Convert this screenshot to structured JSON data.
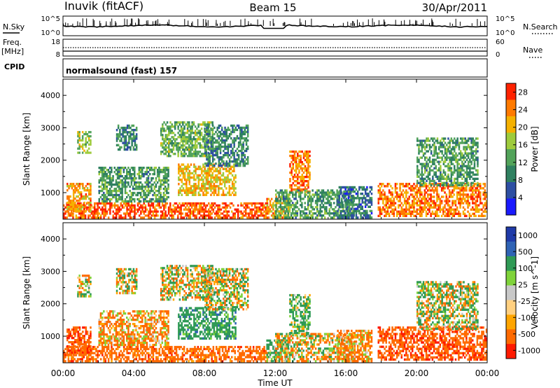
{
  "header": {
    "station": "Inuvik (fitACF)",
    "beam": "Beam 15",
    "date": "30/Apr/2011"
  },
  "noise_panel": {
    "left_label": "N.Sky",
    "left_ticks": [
      "10^5",
      "10^0"
    ],
    "right_label": "N.Search",
    "right_ticks": [
      "10^5",
      "10^0"
    ]
  },
  "freq_panel": {
    "left_label_line1": "Freq.",
    "left_label_line2": "[MHz]",
    "left_ticks": [
      "18",
      "8"
    ],
    "right_label": "Nave",
    "right_ticks": [
      "60",
      "0"
    ]
  },
  "cpid_panel": {
    "label": "CPID",
    "mode_text": "normalsound (fast) 157"
  },
  "x_axis": {
    "title": "Time UT",
    "ticks": [
      "00:00",
      "04:00",
      "08:00",
      "12:00",
      "16:00",
      "20:00",
      "00:00"
    ]
  },
  "colors": {
    "power_scale": [
      "#1a1aff",
      "#2e4fa3",
      "#2f8060",
      "#52a35a",
      "#9ecb3c",
      "#f5b100",
      "#ff7a00",
      "#ff2200"
    ],
    "velocity_scale": [
      "#ff1a00",
      "#ff6a00",
      "#ffa500",
      "#ffd080",
      "#c8c8c8",
      "#7fd33a",
      "#2f9a55",
      "#2f63b5",
      "#1f3aa8"
    ]
  },
  "chart_data": [
    {
      "type": "heatmap",
      "title": "",
      "xlabel": "Time UT",
      "ylabel": "Slant Range [km]",
      "xlim": [
        "00:00",
        "24:00"
      ],
      "ylim": [
        180,
        4500
      ],
      "y_ticks": [
        1000,
        2000,
        3000,
        4000
      ],
      "colorbar": {
        "label": "Power [dB]",
        "ticks": [
          4,
          8,
          12,
          16,
          20,
          24,
          28
        ],
        "range": [
          0,
          30
        ]
      },
      "echo_regions": [
        {
          "t_start": 0.0,
          "t_end": 11.6,
          "r_min": 200,
          "r_max": 700,
          "value": 26
        },
        {
          "t_start": 0.2,
          "t_end": 1.6,
          "r_min": 400,
          "r_max": 1300,
          "value": 22
        },
        {
          "t_start": 0.8,
          "t_end": 1.6,
          "r_min": 2200,
          "r_max": 2900,
          "value": 16
        },
        {
          "t_start": 2.0,
          "t_end": 6.0,
          "r_min": 700,
          "r_max": 1800,
          "value": 12
        },
        {
          "t_start": 3.0,
          "t_end": 4.2,
          "r_min": 2300,
          "r_max": 3100,
          "value": 10
        },
        {
          "t_start": 5.5,
          "t_end": 8.5,
          "r_min": 2100,
          "r_max": 3200,
          "value": 14
        },
        {
          "t_start": 6.5,
          "t_end": 9.8,
          "r_min": 900,
          "r_max": 1900,
          "value": 20
        },
        {
          "t_start": 8.0,
          "t_end": 10.5,
          "r_min": 1800,
          "r_max": 3100,
          "value": 10
        },
        {
          "t_start": 11.5,
          "t_end": 12.8,
          "r_min": 200,
          "r_max": 900,
          "value": 22
        },
        {
          "t_start": 12.8,
          "t_end": 14.0,
          "r_min": 1000,
          "r_max": 2300,
          "value": 24
        },
        {
          "t_start": 12.0,
          "t_end": 16.5,
          "r_min": 200,
          "r_max": 1100,
          "value": 12
        },
        {
          "t_start": 15.5,
          "t_end": 17.5,
          "r_min": 200,
          "r_max": 1200,
          "value": 8
        },
        {
          "t_start": 17.8,
          "t_end": 24.0,
          "r_min": 250,
          "r_max": 1300,
          "value": 24
        },
        {
          "t_start": 20.0,
          "t_end": 23.5,
          "r_min": 1200,
          "r_max": 2700,
          "value": 12
        }
      ]
    },
    {
      "type": "heatmap",
      "title": "",
      "xlabel": "Time UT",
      "ylabel": "Slant Range [km]",
      "xlim": [
        "00:00",
        "24:00"
      ],
      "ylim": [
        180,
        4500
      ],
      "y_ticks": [
        1000,
        2000,
        3000,
        4000
      ],
      "colorbar": {
        "label": "Velocity [m s^-1]",
        "ticks": [
          1000,
          500,
          100,
          25,
          -25,
          -100,
          -500,
          -1000
        ],
        "range": [
          -1000,
          1000
        ]
      },
      "echo_regions": [
        {
          "t_start": 0.0,
          "t_end": 11.6,
          "r_min": 200,
          "r_max": 700,
          "value": -300
        },
        {
          "t_start": 0.2,
          "t_end": 1.6,
          "r_min": 400,
          "r_max": 1300,
          "value": -400
        },
        {
          "t_start": 0.8,
          "t_end": 1.6,
          "r_min": 2200,
          "r_max": 2900,
          "value": 0
        },
        {
          "t_start": 2.0,
          "t_end": 6.0,
          "r_min": 700,
          "r_max": 1800,
          "value": -150
        },
        {
          "t_start": 3.0,
          "t_end": 4.2,
          "r_min": 2300,
          "r_max": 3100,
          "value": 0
        },
        {
          "t_start": 5.5,
          "t_end": 8.5,
          "r_min": 2100,
          "r_max": 3200,
          "value": 0
        },
        {
          "t_start": 6.5,
          "t_end": 9.8,
          "r_min": 900,
          "r_max": 1900,
          "value": 300
        },
        {
          "t_start": 8.0,
          "t_end": 10.5,
          "r_min": 1800,
          "r_max": 3100,
          "value": 0
        },
        {
          "t_start": 11.5,
          "t_end": 12.8,
          "r_min": 200,
          "r_max": 900,
          "value": 200
        },
        {
          "t_start": 12.8,
          "t_end": 14.0,
          "r_min": 1000,
          "r_max": 2300,
          "value": 150
        },
        {
          "t_start": 12.0,
          "t_end": 16.5,
          "r_min": 200,
          "r_max": 1100,
          "value": -50
        },
        {
          "t_start": 15.5,
          "t_end": 17.5,
          "r_min": 200,
          "r_max": 1200,
          "value": -150
        },
        {
          "t_start": 17.8,
          "t_end": 24.0,
          "r_min": 250,
          "r_max": 1300,
          "value": -400
        },
        {
          "t_start": 20.0,
          "t_end": 23.5,
          "r_min": 1200,
          "r_max": 2700,
          "value": 50
        }
      ]
    }
  ]
}
